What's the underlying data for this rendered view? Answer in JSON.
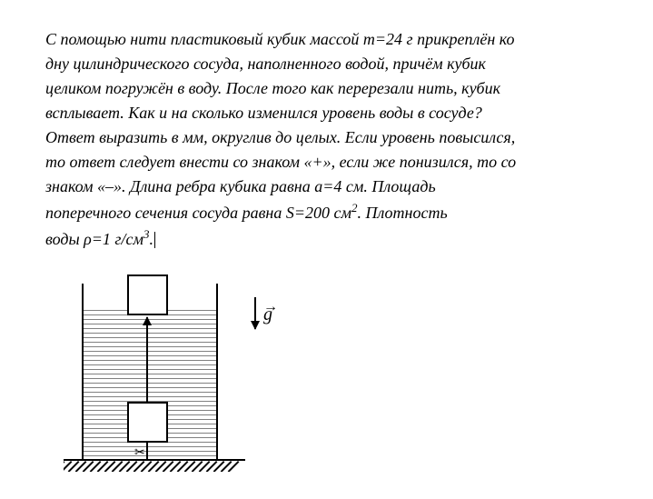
{
  "problem": {
    "line1_a": "С помощью нити пластиковый кубик массой ",
    "mass_var": "m=24 г",
    "line1_b": " прикреплён ко",
    "line2": "дну цилиндрического сосуда, наполненного водой, причём кубик",
    "line3": "целиком погружён в воду. После того как перерезали нить, кубик",
    "line4": "всплывает. Как и на сколько изменился уровень воды в сосуде?",
    "line5": "Ответ выразить в мм, округлив до целых. Если уровень повысился,",
    "line6": "то ответ следует внести со знаком «+», если же понизился, то со",
    "line7_a": "знаком «–». Длина ребра кубика равна ",
    "edge_var": "a=4 см",
    "line7_b": ". Площадь",
    "line8_a": "поперечного сечения сосуда равна ",
    "area_var": "S=200 см",
    "area_exp": "2",
    "line8_b": ". Плотность",
    "line9_a": "воды ",
    "density_var": "ρ=1 г/см",
    "density_exp": "3",
    "line9_b": "."
  },
  "diagram": {
    "gravity_symbol": "g",
    "gravity_arrow": "→",
    "scissors_symbol": "✂",
    "water_lines_count": 33,
    "hatch_count": 25,
    "hatch_spacing": 8,
    "colors": {
      "line": "#000000",
      "water_line": "#808080",
      "background": "#ffffff"
    }
  }
}
